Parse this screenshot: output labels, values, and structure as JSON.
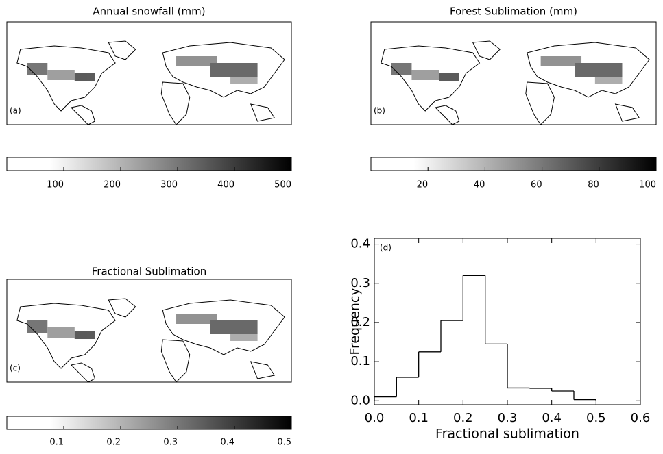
{
  "chart_data": [
    {
      "type": "map",
      "title": "Annual snowfall (mm)",
      "panel_label": "(a)",
      "xlim": [
        0,
        500
      ],
      "xticks": [
        100,
        200,
        300,
        400,
        500
      ]
    },
    {
      "type": "map",
      "title": "Forest Sublimation (mm)",
      "panel_label": "(b)",
      "xlim": [
        0,
        100
      ],
      "xticks": [
        20,
        40,
        60,
        80,
        100
      ]
    },
    {
      "type": "map",
      "title": "Fractional Sublimation",
      "panel_label": "(c)",
      "xlim": [
        0,
        0.5
      ],
      "xticks": [
        0.1,
        0.2,
        0.3,
        0.4,
        0.5
      ]
    },
    {
      "type": "histogram",
      "panel_label": "(d)",
      "x_label": "Fractional sublimation",
      "y_label": "Frequency",
      "bins": [
        0,
        0.05,
        0.1,
        0.15,
        0.2,
        0.25,
        0.3,
        0.35,
        0.4,
        0.45,
        0.5
      ],
      "values": [
        0.01,
        0.06,
        0.125,
        0.205,
        0.32,
        0.145,
        0.033,
        0.032,
        0.025,
        0.003
      ],
      "xlim": [
        0,
        0.6
      ],
      "xticks": [
        {
          "value": 0,
          "label": "0.0"
        },
        0.1,
        0.2,
        0.3,
        0.4,
        0.5,
        0.6
      ],
      "ylim": [
        -0.01,
        0.415
      ],
      "yticks": [
        {
          "value": 0,
          "label": "0.0"
        },
        0.1,
        0.2,
        0.3,
        0.4
      ]
    }
  ]
}
